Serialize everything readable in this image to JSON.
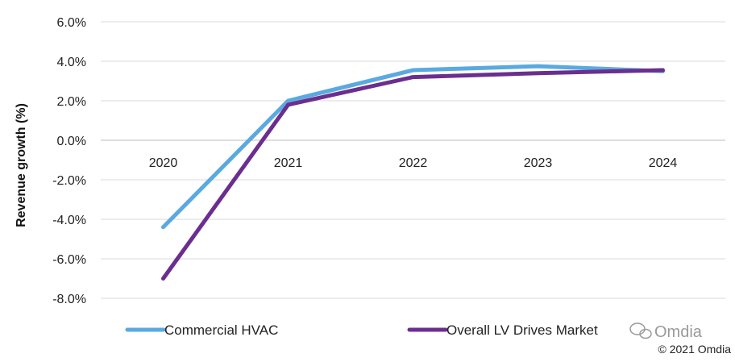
{
  "chart_data": {
    "type": "line",
    "categories": [
      "2020",
      "2021",
      "2022",
      "2023",
      "2024"
    ],
    "series": [
      {
        "name": "Commercial HVAC",
        "color": "#5aa9e0",
        "values": [
          -4.4,
          2.0,
          3.55,
          3.75,
          3.5
        ]
      },
      {
        "name": "Overall LV Drives Market",
        "color": "#6b2e8f",
        "values": [
          -7.0,
          1.8,
          3.2,
          3.4,
          3.55
        ]
      }
    ],
    "y_ticks": [
      "6.0%",
      "4.0%",
      "2.0%",
      "0.0%",
      "-2.0%",
      "-4.0%",
      "-6.0%",
      "-8.0%"
    ],
    "ylim": [
      -8,
      6
    ],
    "ylabel": "Revenue growth (%)",
    "grid": true,
    "legend_position": "bottom"
  },
  "watermark": "Omdia",
  "copyright": "© 2021 Omdia"
}
